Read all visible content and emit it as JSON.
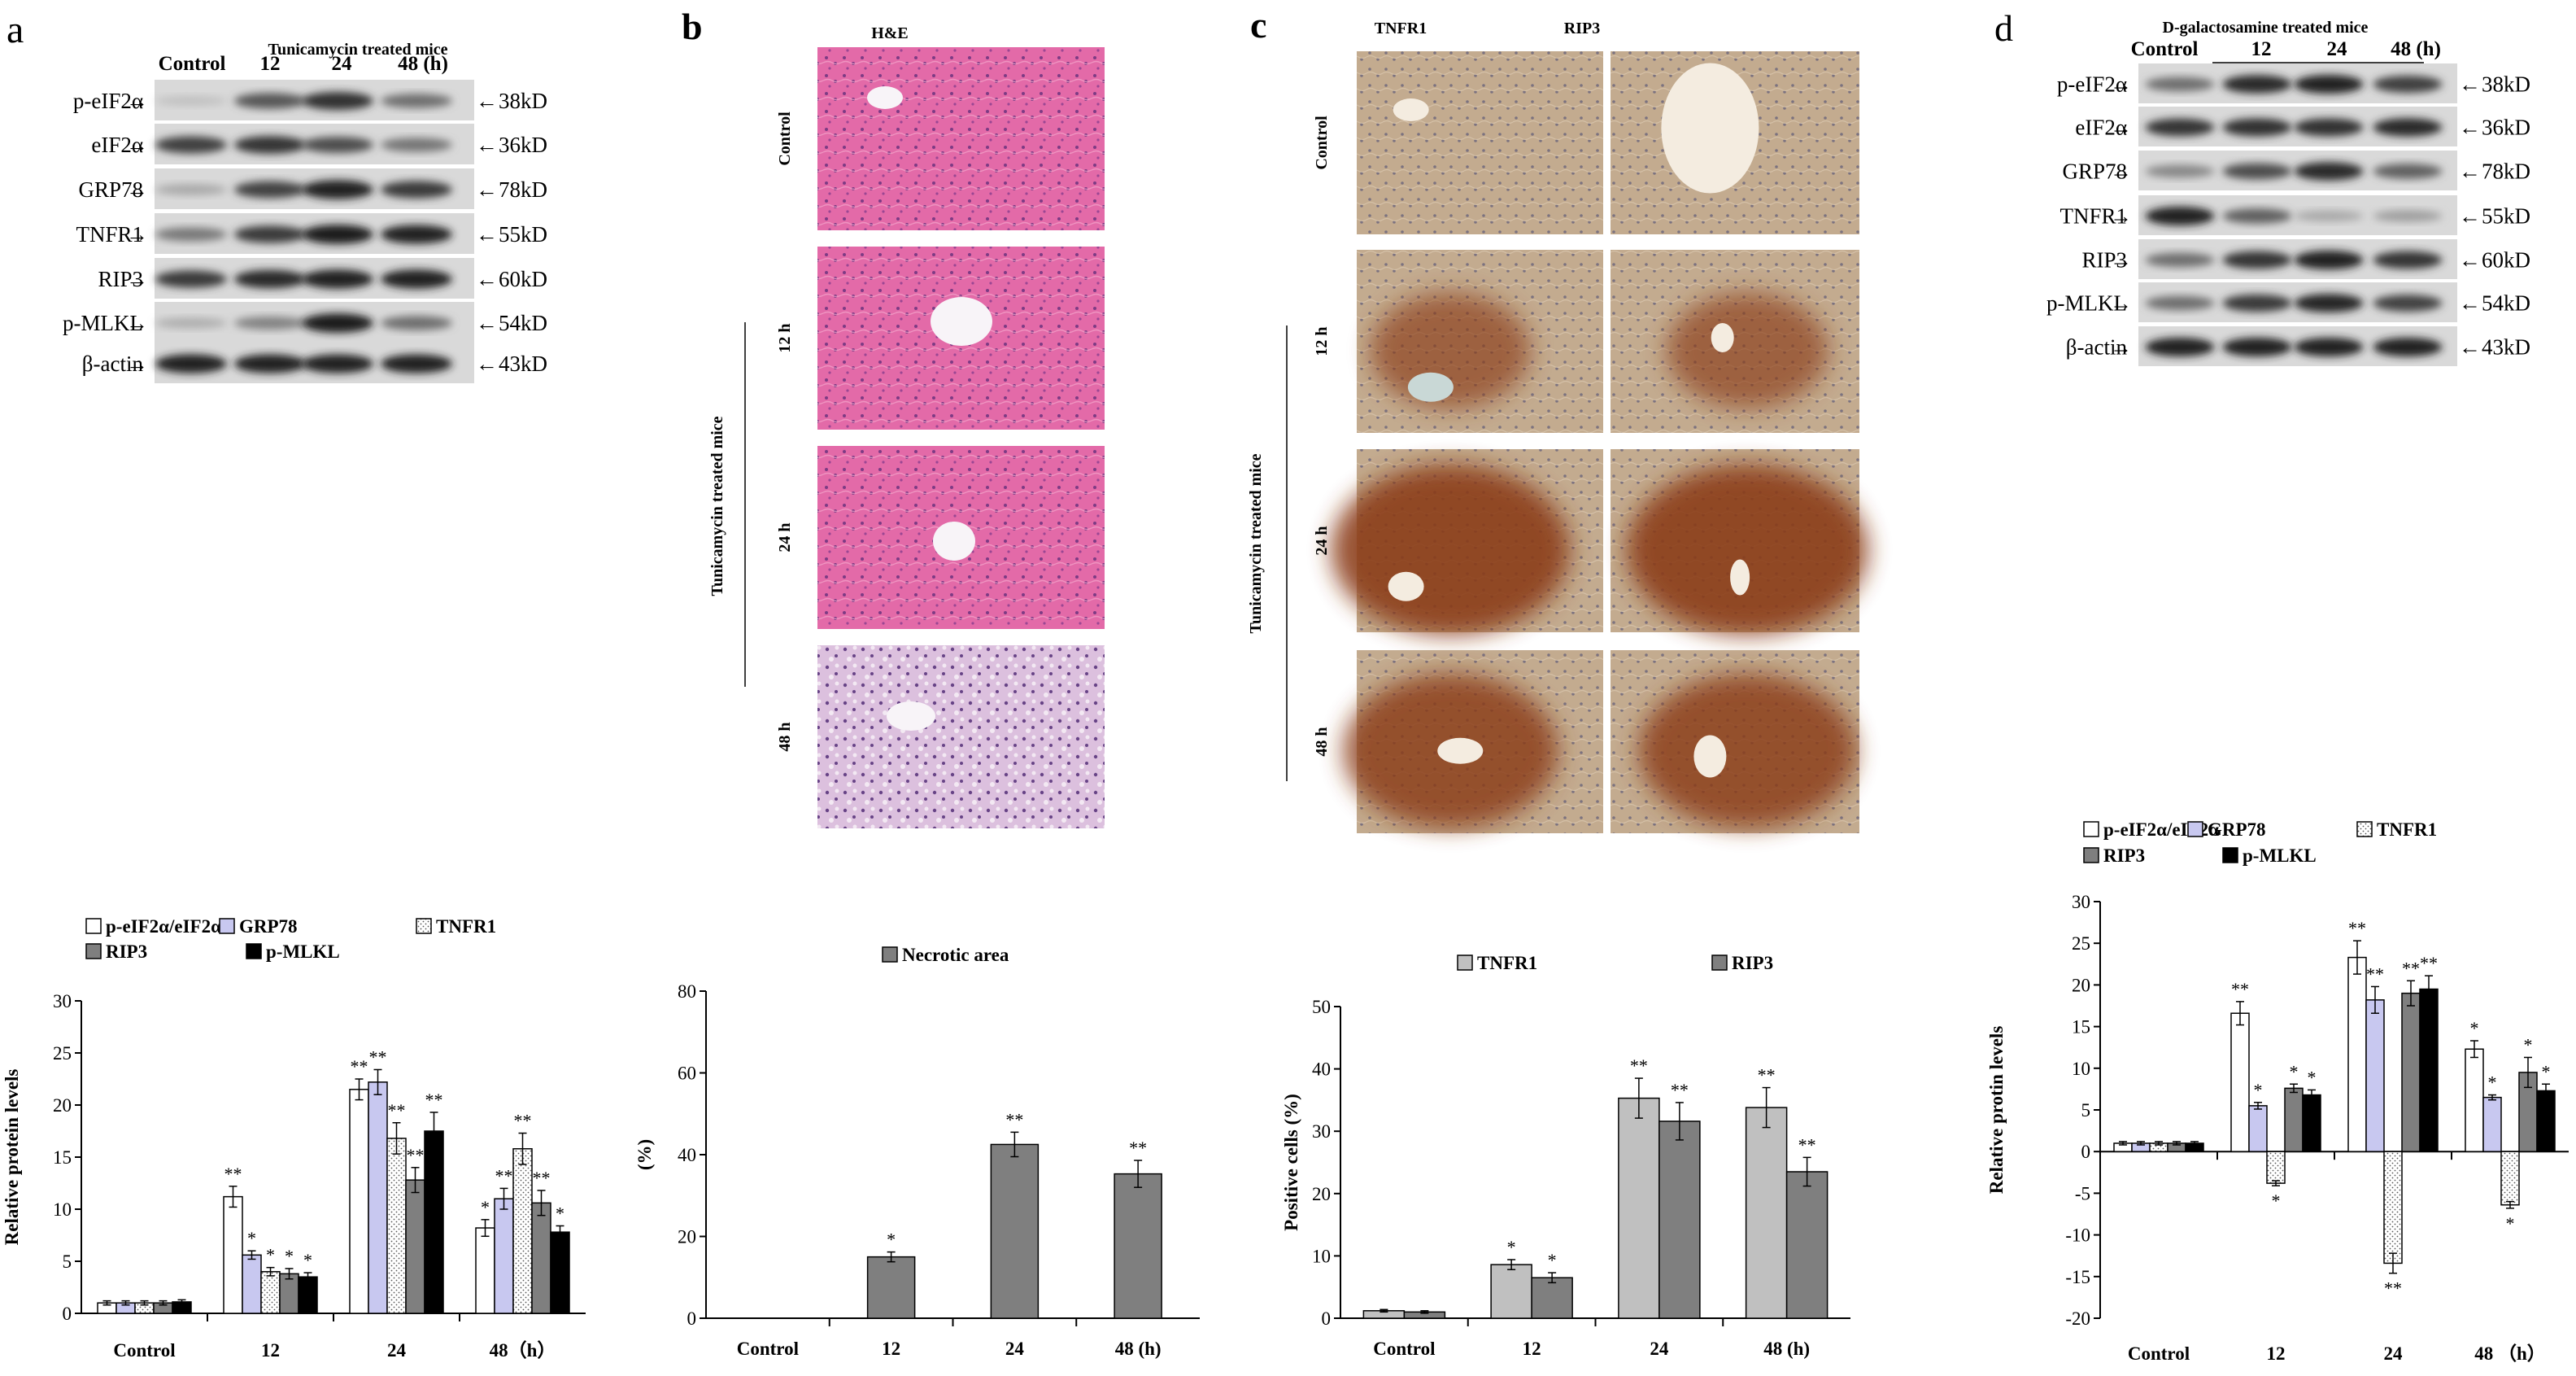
{
  "panels": {
    "a": {
      "letter": "a",
      "header": "Tunicamycin treated mice",
      "columns": [
        "Control",
        "12",
        "24",
        "48 (h)"
      ],
      "blots": [
        {
          "label": "p-eIF2α",
          "size": "38kD",
          "intensity": [
            0.12,
            0.68,
            0.88,
            0.55
          ]
        },
        {
          "label": "eIF2α",
          "size": "36kD",
          "intensity": [
            0.8,
            0.85,
            0.72,
            0.52
          ]
        },
        {
          "label": "GRP78",
          "size": "78kD",
          "intensity": [
            0.25,
            0.78,
            0.96,
            0.82
          ]
        },
        {
          "label": "TNFR1",
          "size": "55kD",
          "intensity": [
            0.5,
            0.82,
            0.98,
            0.95
          ]
        },
        {
          "label": "RIP3",
          "size": "60kD",
          "intensity": [
            0.82,
            0.9,
            0.96,
            0.96
          ]
        },
        {
          "label": "p-MLKL",
          "size": "54kD",
          "intensity": [
            0.22,
            0.45,
            0.98,
            0.55
          ]
        },
        {
          "label": "β-actin",
          "size": "43kD",
          "intensity": [
            0.96,
            0.95,
            0.95,
            0.95
          ]
        }
      ]
    },
    "b": {
      "letter": "b",
      "stain": "H&E",
      "rows": [
        "Control",
        "12 h",
        "24 h",
        "48 h"
      ],
      "side_label": "Tunicamycin treated mice"
    },
    "c": {
      "letter": "c",
      "columns": [
        "TNFR1",
        "RIP3"
      ],
      "rows": [
        "Control",
        "12 h",
        "24 h",
        "48 h"
      ],
      "side_label": "Tunicamycin treated mice"
    },
    "d": {
      "letter": "d",
      "header": "D-galactosamine treated mice",
      "columns": [
        "Control",
        "12",
        "24",
        "48 (h)"
      ],
      "blots": [
        {
          "label": "p-eIF2α",
          "size": "38kD",
          "intensity": [
            0.55,
            0.9,
            0.95,
            0.8
          ]
        },
        {
          "label": "eIF2α",
          "size": "36kD",
          "intensity": [
            0.85,
            0.88,
            0.88,
            0.9
          ]
        },
        {
          "label": "GRP78",
          "size": "78kD",
          "intensity": [
            0.42,
            0.72,
            0.9,
            0.62
          ]
        },
        {
          "label": "TNFR1",
          "size": "55kD",
          "intensity": [
            0.95,
            0.62,
            0.25,
            0.3
          ]
        },
        {
          "label": "RIP3",
          "size": "60kD",
          "intensity": [
            0.55,
            0.85,
            0.95,
            0.85
          ]
        },
        {
          "label": "p-MLKL",
          "size": "54kD",
          "intensity": [
            0.55,
            0.82,
            0.92,
            0.78
          ]
        },
        {
          "label": "β-actin",
          "size": "43kD",
          "intensity": [
            0.95,
            0.95,
            0.95,
            0.95
          ]
        }
      ]
    }
  },
  "colors": {
    "white_fill": "#ffffff",
    "grp78_fill": "#c8c8f0",
    "tnfr1_fill": "#f2f2f2",
    "rip3_fill": "#7f7f7f",
    "pmlkl_fill": "#000000",
    "necrotic_fill": "#7f7f7f",
    "c_tnfr1_fill": "#c0c0c0",
    "c_rip3_fill": "#7f7f7f"
  },
  "chart_data": [
    {
      "panel": "a",
      "type": "bar",
      "categories": [
        "Control",
        "12",
        "24",
        "48（h）"
      ],
      "ylabel": "Relative protein levels",
      "ylim": [
        0,
        30
      ],
      "yticks": [
        0,
        5,
        10,
        15,
        20,
        25,
        30
      ],
      "legend_placement": "top",
      "series": [
        {
          "name": "p-eIF2α/eIF2α",
          "values": [
            1,
            11.2,
            21.5,
            8.2
          ],
          "errors": [
            0.2,
            1.0,
            1.0,
            0.8
          ],
          "sig": [
            "",
            "**",
            "**",
            "*"
          ]
        },
        {
          "name": "GRP78",
          "values": [
            1,
            5.6,
            22.2,
            11.0
          ],
          "errors": [
            0.2,
            0.4,
            1.2,
            1.0
          ],
          "sig": [
            "",
            "*",
            "**",
            "**"
          ]
        },
        {
          "name": "TNFR1",
          "values": [
            1,
            4.0,
            16.8,
            15.8
          ],
          "errors": [
            0.2,
            0.4,
            1.5,
            1.5
          ],
          "sig": [
            "",
            "*",
            "**",
            "**"
          ]
        },
        {
          "name": "RIP3",
          "values": [
            1,
            3.8,
            12.8,
            10.6
          ],
          "errors": [
            0.2,
            0.5,
            1.2,
            1.2
          ],
          "sig": [
            "",
            "*",
            "**",
            "**"
          ]
        },
        {
          "name": "p-MLKL",
          "values": [
            1.1,
            3.5,
            17.5,
            7.8
          ],
          "errors": [
            0.2,
            0.4,
            1.8,
            0.6
          ],
          "sig": [
            "",
            "*",
            "**",
            "*"
          ]
        }
      ]
    },
    {
      "panel": "b",
      "type": "bar",
      "categories": [
        "Control",
        "12",
        "24",
        "48 (h)"
      ],
      "ylabel": "(%)",
      "ylim": [
        0,
        80
      ],
      "yticks": [
        0,
        20,
        40,
        60,
        80
      ],
      "legend_placement": "top",
      "series": [
        {
          "name": "Necrotic area",
          "values": [
            0,
            15,
            42.5,
            35.3
          ],
          "errors": [
            0,
            1.2,
            3.0,
            3.3
          ],
          "sig": [
            "",
            "*",
            "**",
            "**"
          ]
        }
      ]
    },
    {
      "panel": "c",
      "type": "bar",
      "categories": [
        "Control",
        "12",
        "24",
        "48 (h)"
      ],
      "ylabel": "Positive cells (%)",
      "ylim": [
        0,
        50
      ],
      "yticks": [
        0,
        10,
        20,
        30,
        40,
        50
      ],
      "legend_placement": "top",
      "series": [
        {
          "name": "TNFR1",
          "values": [
            1.2,
            8.6,
            35.3,
            33.8
          ],
          "errors": [
            0.2,
            0.8,
            3.2,
            3.2
          ],
          "sig": [
            "",
            "*",
            "**",
            "**"
          ]
        },
        {
          "name": "RIP3",
          "values": [
            1.0,
            6.5,
            31.6,
            23.5
          ],
          "errors": [
            0.2,
            0.8,
            3.0,
            2.3
          ],
          "sig": [
            "",
            "*",
            "**",
            "**"
          ]
        }
      ]
    },
    {
      "panel": "d",
      "type": "bar",
      "categories": [
        "Control",
        "12",
        "24",
        "48 （h）"
      ],
      "ylabel": "Relative protin levels",
      "ylim": [
        -20,
        30
      ],
      "yticks": [
        -20,
        -15,
        -10,
        -5,
        0,
        5,
        10,
        15,
        20,
        25,
        30
      ],
      "legend_placement": "top",
      "series": [
        {
          "name": "p-eIF2α/eIF2α",
          "values": [
            1,
            16.6,
            23.3,
            12.3
          ],
          "errors": [
            0.2,
            1.4,
            2.0,
            1.0
          ],
          "sig": [
            "",
            "**",
            "**",
            "*"
          ]
        },
        {
          "name": "GRP78",
          "values": [
            1,
            5.5,
            18.2,
            6.5
          ],
          "errors": [
            0.2,
            0.4,
            1.6,
            0.3
          ],
          "sig": [
            "",
            "*",
            "**",
            "*"
          ]
        },
        {
          "name": "TNFR1",
          "values": [
            1,
            -3.8,
            -13.4,
            -6.4
          ],
          "errors": [
            0.2,
            0.3,
            1.2,
            0.4
          ],
          "sig": [
            "",
            "*",
            "**",
            "*"
          ]
        },
        {
          "name": "RIP3",
          "values": [
            1,
            7.6,
            19.0,
            9.5
          ],
          "errors": [
            0.2,
            0.5,
            1.5,
            1.8
          ],
          "sig": [
            "",
            "*",
            "**",
            "*"
          ]
        },
        {
          "name": "p-MLKL",
          "values": [
            1,
            6.8,
            19.5,
            7.3
          ],
          "errors": [
            0.2,
            0.6,
            1.6,
            0.8
          ],
          "sig": [
            "",
            "*",
            "**",
            "*"
          ]
        }
      ]
    }
  ]
}
